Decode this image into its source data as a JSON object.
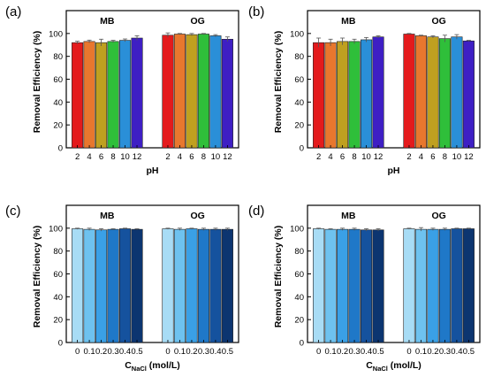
{
  "chart_data": [
    {
      "type": "bar",
      "panel_label": "(a)",
      "ylabel": "Removal Efficiency (%)",
      "xlabel_main": "pH",
      "xlabel_sub": "",
      "xlabel_unit": "",
      "ylim": [
        0,
        120
      ],
      "yticks": [
        "0",
        "20",
        "40",
        "60",
        "80",
        "100"
      ],
      "groups": [
        "MB",
        "OG"
      ],
      "categories": [
        "2",
        "4",
        "6",
        "8",
        "10",
        "12"
      ],
      "colors": [
        "#e41a1c",
        "#e8772e",
        "#bfa020",
        "#2fbf3a",
        "#2a8fd8",
        "#3e1fc4"
      ],
      "series": [
        {
          "values": [
            92,
            93,
            92,
            93,
            94,
            96
          ],
          "errors": [
            1.2,
            1.2,
            3,
            1,
            1.2,
            2
          ]
        },
        {
          "values": [
            98.5,
            99.5,
            99,
            99.5,
            98,
            95
          ],
          "errors": [
            2,
            0.5,
            1,
            0.5,
            1,
            2
          ]
        }
      ]
    },
    {
      "type": "bar",
      "panel_label": "(b)",
      "ylabel": "Removal Efficiency (%)",
      "xlabel_main": "pH",
      "xlabel_sub": "",
      "xlabel_unit": "",
      "ylim": [
        0,
        120
      ],
      "yticks": [
        "0",
        "20",
        "40",
        "60",
        "80",
        "100"
      ],
      "groups": [
        "MB",
        "OG"
      ],
      "categories": [
        "2",
        "4",
        "6",
        "8",
        "10",
        "12"
      ],
      "colors": [
        "#e41a1c",
        "#e8772e",
        "#bfa020",
        "#2fbf3a",
        "#2a8fd8",
        "#3e1fc4"
      ],
      "series": [
        {
          "values": [
            92,
            92,
            93,
            93,
            94.5,
            97
          ],
          "errors": [
            4,
            3,
            3,
            2,
            2,
            1
          ]
        },
        {
          "values": [
            99.5,
            98,
            97,
            95.5,
            97,
            93.5
          ],
          "errors": [
            0.5,
            0.5,
            1,
            3,
            2,
            0.5
          ]
        }
      ]
    },
    {
      "type": "bar",
      "panel_label": "(c)",
      "ylabel": "Removal Efficiency (%)",
      "xlabel_main": "C",
      "xlabel_sub": "NaCl",
      "xlabel_unit": " (mol/L)",
      "ylim": [
        0,
        120
      ],
      "yticks": [
        "0",
        "20",
        "40",
        "60",
        "80",
        "100"
      ],
      "groups": [
        "MB",
        "OG"
      ],
      "categories": [
        "0",
        "0.1",
        "0.2",
        "0.3",
        "0.4",
        "0.5"
      ],
      "colors": [
        "#a8dcf5",
        "#6ec2ef",
        "#3aa0e6",
        "#1f78c8",
        "#15529e",
        "#0c3570"
      ],
      "series": [
        {
          "values": [
            99.5,
            99,
            98.5,
            99,
            99.5,
            99
          ],
          "errors": [
            0.5,
            1,
            1,
            0.5,
            0.5,
            0.5
          ]
        },
        {
          "values": [
            99.5,
            99,
            99.5,
            99,
            99,
            99
          ],
          "errors": [
            0.5,
            1,
            0.5,
            1,
            1,
            1
          ]
        }
      ]
    },
    {
      "type": "bar",
      "panel_label": "(d)",
      "ylabel": "Removal Efficiency (%)",
      "xlabel_main": "C",
      "xlabel_sub": "NaCl",
      "xlabel_unit": " (mol/L)",
      "ylim": [
        0,
        120
      ],
      "yticks": [
        "0",
        "20",
        "40",
        "60",
        "80",
        "100"
      ],
      "groups": [
        "MB",
        "OG"
      ],
      "categories": [
        "0",
        "0.1",
        "0.2",
        "0.3",
        "0.4",
        "0.5"
      ],
      "colors": [
        "#a8dcf5",
        "#6ec2ef",
        "#3aa0e6",
        "#1f78c8",
        "#15529e",
        "#0c3570"
      ],
      "series": [
        {
          "values": [
            99.5,
            99,
            99,
            99,
            98.5,
            98.5
          ],
          "errors": [
            0.5,
            0.5,
            1,
            1,
            1,
            1
          ]
        },
        {
          "values": [
            99.5,
            99,
            99,
            99,
            99.5,
            99.5
          ],
          "errors": [
            0.5,
            1.5,
            1,
            1,
            0.5,
            0.5
          ]
        }
      ]
    }
  ]
}
